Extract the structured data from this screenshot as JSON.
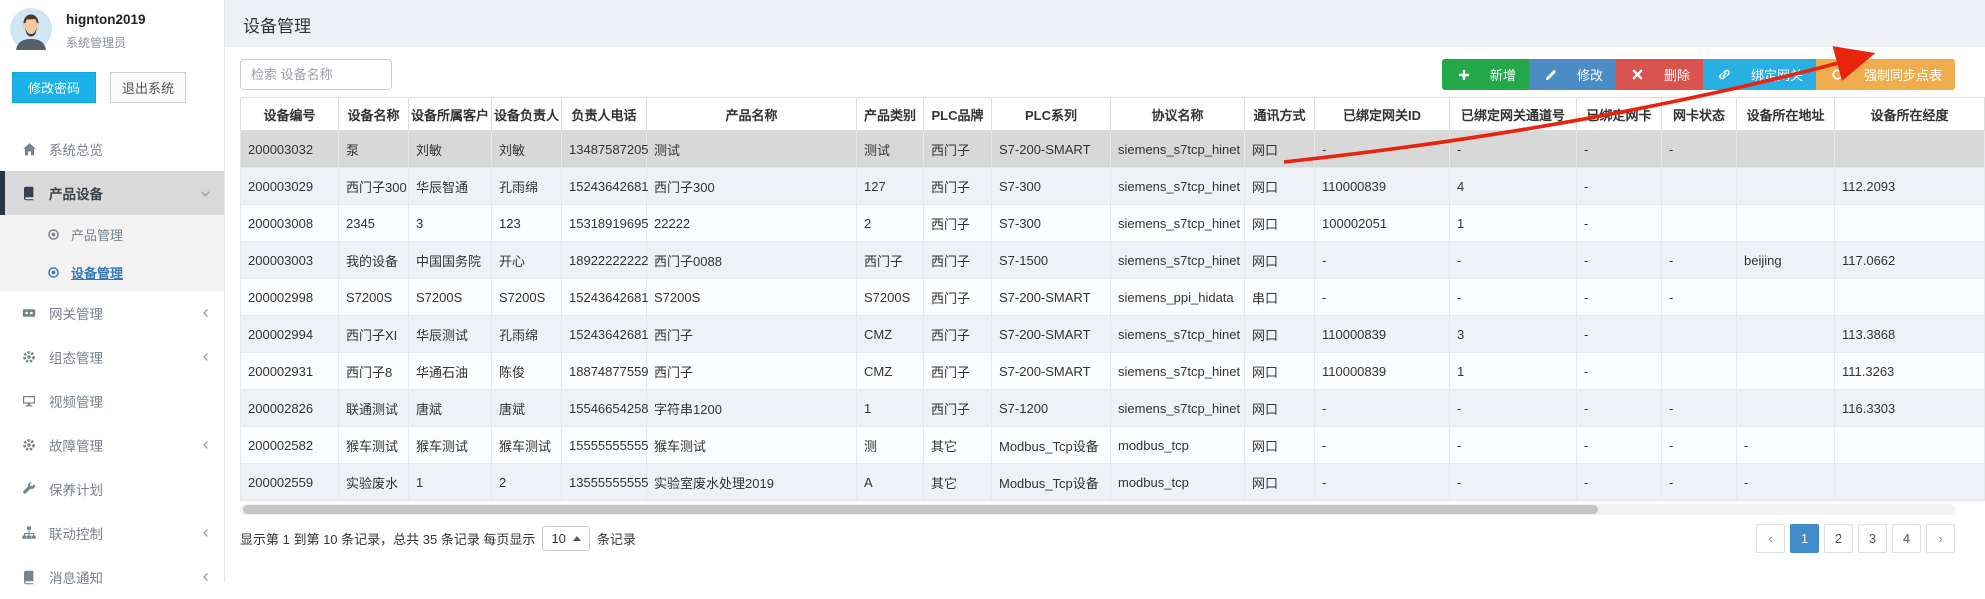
{
  "user": {
    "name": "hignton2019",
    "role": "系统管理员"
  },
  "user_actions": {
    "change_password": "修改密码",
    "logout": "退出系统"
  },
  "sidebar": {
    "items": [
      {
        "name": "system-overview",
        "label": "系统总览",
        "icon": "home-icon",
        "chevron": null,
        "active": false
      },
      {
        "name": "product-device",
        "label": "产品设备",
        "icon": "book-icon",
        "chevron": "down",
        "active": true,
        "children": [
          {
            "name": "product-manage",
            "label": "产品管理",
            "active": false
          },
          {
            "name": "device-manage",
            "label": "设备管理",
            "active": true
          }
        ]
      },
      {
        "name": "gateway-manage",
        "label": "网关管理",
        "icon": "film-icon",
        "chevron": "left",
        "active": false
      },
      {
        "name": "scada-manage",
        "label": "组态管理",
        "icon": "gear-icon",
        "chevron": "left",
        "active": false
      },
      {
        "name": "video-manage",
        "label": "视频管理",
        "icon": "desktop-icon",
        "chevron": null,
        "active": false
      },
      {
        "name": "fault-manage",
        "label": "故障管理",
        "icon": "gear-icon",
        "chevron": "left",
        "active": false
      },
      {
        "name": "maintenance-plan",
        "label": "保养计划",
        "icon": "wrench-icon",
        "chevron": null,
        "active": false
      },
      {
        "name": "linkage-control",
        "label": "联动控制",
        "icon": "sitemap-icon",
        "chevron": "left",
        "active": false
      },
      {
        "name": "message-notice",
        "label": "消息通知",
        "icon": "book-icon",
        "chevron": "left",
        "active": false
      }
    ]
  },
  "page": {
    "title": "设备管理"
  },
  "toolbar": {
    "search_placeholder": "检索 设备名称",
    "buttons": [
      {
        "name": "add-button",
        "label": "新增",
        "icon": "plus-icon",
        "color": "#23a84a"
      },
      {
        "name": "edit-button",
        "label": "修改",
        "icon": "pencil-icon",
        "color": "#4a8cc3"
      },
      {
        "name": "delete-button",
        "label": "删除",
        "icon": "x-icon",
        "color": "#d9534f"
      },
      {
        "name": "bind-gateway-button",
        "label": "绑定网关",
        "icon": "link-icon",
        "color": "#29b0e2"
      },
      {
        "name": "force-sync-button",
        "label": "强制同步点表",
        "icon": "refresh-icon",
        "color": "#f0ad4e"
      }
    ]
  },
  "table": {
    "headers": [
      "设备编号",
      "设备名称",
      "设备所属客户",
      "设备负责人",
      "负责人电话",
      "产品名称",
      "产品类别",
      "PLC品牌",
      "PLC系列",
      "协议名称",
      "通讯方式",
      "已绑定网关ID",
      "已绑定网关通道号",
      "已绑定网卡",
      "网卡状态",
      "设备所在地址",
      "设备所在经度"
    ],
    "selected_row_index": 0,
    "rows": [
      [
        "200003032",
        "泵",
        "刘敏",
        "刘敏",
        "13487587205",
        "测试",
        "测试",
        "西门子",
        "S7-200-SMART",
        "siemens_s7tcp_hinet",
        "网口",
        "-",
        "-",
        "-",
        "-",
        "",
        ""
      ],
      [
        "200003029",
        "西门子300",
        "华辰智通",
        "孔雨绵",
        "15243642681",
        "西门子300",
        "127",
        "西门子",
        "S7-300",
        "siemens_s7tcp_hinet",
        "网口",
        "110000839",
        "4",
        "-",
        "",
        "",
        "112.2093"
      ],
      [
        "200003008",
        "2345",
        "3",
        "123",
        "15318919695",
        "22222",
        "2",
        "西门子",
        "S7-300",
        "siemens_s7tcp_hinet",
        "网口",
        "100002051",
        "1",
        "-",
        "",
        "",
        ""
      ],
      [
        "200003003",
        "我的设备",
        "中国国务院",
        "开心",
        "18922222222",
        "西门子0088",
        "西门子",
        "西门子",
        "S7-1500",
        "siemens_s7tcp_hinet",
        "网口",
        "-",
        "-",
        "-",
        "-",
        "beijing",
        "117.0662"
      ],
      [
        "200002998",
        "S7200S",
        "S7200S",
        "S7200S",
        "15243642681",
        "S7200S",
        "S7200S",
        "西门子",
        "S7-200-SMART",
        "siemens_ppi_hidata",
        "串口",
        "-",
        "-",
        "-",
        "-",
        "",
        ""
      ],
      [
        "200002994",
        "西门子XI",
        "华辰测试",
        "孔雨绵",
        "15243642681",
        "西门子",
        "CMZ",
        "西门子",
        "S7-200-SMART",
        "siemens_s7tcp_hinet",
        "网口",
        "110000839",
        "3",
        "-",
        "",
        "",
        "113.3868"
      ],
      [
        "200002931",
        "西门子8",
        "华通石油",
        "陈俊",
        "18874877559",
        "西门子",
        "CMZ",
        "西门子",
        "S7-200-SMART",
        "siemens_s7tcp_hinet",
        "网口",
        "110000839",
        "1",
        "-",
        "",
        "",
        "111.3263"
      ],
      [
        "200002826",
        "联通测试",
        "唐斌",
        "唐斌",
        "15546654258",
        "字符串1200",
        "1",
        "西门子",
        "S7-1200",
        "siemens_s7tcp_hinet",
        "网口",
        "-",
        "-",
        "-",
        "-",
        "",
        "116.3303"
      ],
      [
        "200002582",
        "猴车测试",
        "猴车测试",
        "猴车测试",
        "15555555555",
        "猴车测试",
        "测",
        "其它",
        "Modbus_Tcp设备",
        "modbus_tcp",
        "网口",
        "-",
        "-",
        "-",
        "-",
        "-",
        ""
      ],
      [
        "200002559",
        "实验废水",
        "1",
        "2",
        "13555555555",
        "实验室废水处理2019",
        "A",
        "其它",
        "Modbus_Tcp设备",
        "modbus_tcp",
        "网口",
        "-",
        "-",
        "-",
        "-",
        "-",
        ""
      ]
    ]
  },
  "footer": {
    "summary": "显示第 1 到第 10 条记录，总共 35 条记录 每页显示",
    "page_size": "10",
    "records_suffix": "条记录",
    "pagination": {
      "prev": "‹",
      "pages": [
        "1",
        "2",
        "3",
        "4"
      ],
      "next": "›",
      "active": "1"
    }
  },
  "annotation": {
    "arrow_color": "#e8230e"
  }
}
